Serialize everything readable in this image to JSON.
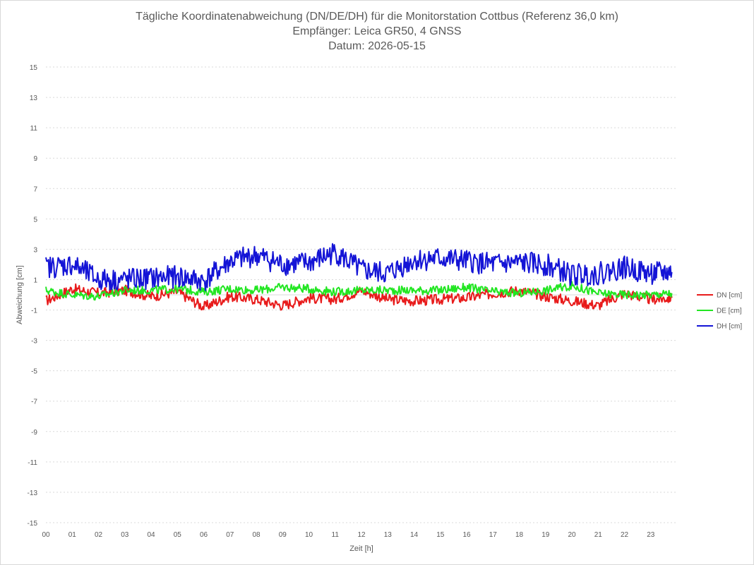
{
  "chart_data": {
    "type": "line",
    "title": [
      "Tägliche Koordinatenabweichung (DN/DE/DH) für die Monitorstation Cottbus (Referenz 36,0 km)",
      "Empfänger: Leica GR50, 4 GNSS",
      "Datum: 2026-05-15"
    ],
    "xlabel": "Zeit [h]",
    "ylabel": "Abweichung [cm]",
    "xlim": [
      0,
      24
    ],
    "ylim": [
      -15,
      15
    ],
    "x_ticks": [
      "00",
      "01",
      "02",
      "03",
      "04",
      "05",
      "06",
      "07",
      "08",
      "09",
      "10",
      "11",
      "12",
      "13",
      "14",
      "15",
      "16",
      "17",
      "18",
      "19",
      "20",
      "21",
      "22",
      "23"
    ],
    "y_ticks": [
      15,
      13,
      11,
      9,
      7,
      5,
      3,
      1,
      -1,
      -3,
      -5,
      -7,
      -9,
      -11,
      -13,
      -15
    ],
    "grid": true,
    "legend_position": "right",
    "series": [
      {
        "name": "DN [cm]",
        "color": "#e81b1b",
        "x": [
          0,
          1,
          2,
          3,
          4,
          5,
          6,
          7,
          8,
          9,
          10,
          11,
          12,
          13,
          14,
          15,
          16,
          17,
          18,
          19,
          20,
          21,
          22,
          23,
          23.8
        ],
        "y": [
          -0.4,
          0.4,
          0.1,
          0.3,
          -0.1,
          0.2,
          -0.8,
          -0.1,
          -0.3,
          -0.7,
          -0.2,
          -0.3,
          0.3,
          -0.3,
          -0.4,
          -0.3,
          -0.2,
          0.1,
          0.3,
          -0.1,
          -0.4,
          -0.7,
          0.1,
          -0.3,
          -0.2
        ]
      },
      {
        "name": "DE [cm]",
        "color": "#22e622",
        "x": [
          0,
          1,
          2,
          3,
          4,
          5,
          6,
          7,
          8,
          9,
          10,
          11,
          12,
          13,
          14,
          15,
          16,
          17,
          18,
          19,
          20,
          21,
          22,
          23,
          23.8
        ],
        "y": [
          0.3,
          0.0,
          -0.1,
          0.3,
          0.3,
          0.4,
          0.2,
          0.4,
          0.3,
          0.5,
          0.4,
          0.2,
          0.3,
          0.3,
          0.3,
          0.3,
          0.5,
          0.2,
          0.1,
          0.3,
          0.6,
          0.1,
          0.0,
          0.0,
          0.1
        ]
      },
      {
        "name": "DH [cm]",
        "color": "#1414d6",
        "x": [
          0,
          1,
          2,
          3,
          4,
          5,
          6,
          7,
          8,
          9,
          10,
          11,
          12,
          13,
          14,
          15,
          16,
          17,
          18,
          19,
          20,
          21,
          22,
          23,
          23.8
        ],
        "y": [
          1.8,
          2.0,
          1.0,
          1.0,
          1.1,
          1.2,
          0.9,
          2.2,
          2.6,
          2.0,
          2.1,
          2.8,
          1.6,
          1.4,
          2.3,
          2.4,
          2.2,
          2.0,
          2.1,
          2.0,
          1.3,
          1.4,
          1.8,
          1.4,
          1.5
        ]
      }
    ]
  }
}
